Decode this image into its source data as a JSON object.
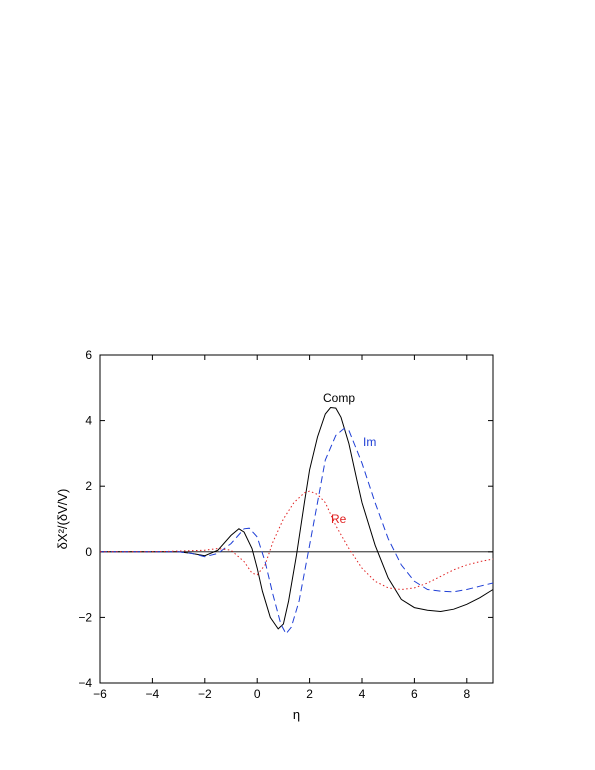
{
  "chart_data": {
    "type": "line",
    "xlabel": "η",
    "ylabel": "δX²/(δV/V)",
    "xlim": [
      -6,
      9
    ],
    "ylim": [
      -4,
      6
    ],
    "xticks": [
      -6,
      -4,
      -2,
      0,
      2,
      4,
      6,
      8
    ],
    "yticks": [
      -4,
      -2,
      0,
      2,
      4,
      6
    ],
    "xtick_labels": [
      "−6",
      "−4",
      "−2",
      "0",
      "2",
      "4",
      "6",
      "8"
    ],
    "ytick_labels": [
      "−4",
      "−2",
      "0",
      "2",
      "4",
      "6"
    ],
    "zero_line": true,
    "grid": false,
    "series": [
      {
        "name": "Comp",
        "color": "#000000",
        "dash": "solid",
        "x": [
          -6,
          -4,
          -3,
          -2.5,
          -2,
          -1.5,
          -1,
          -0.7,
          -0.5,
          -0.2,
          0,
          0.2,
          0.5,
          0.8,
          1,
          1.2,
          1.5,
          1.8,
          2,
          2.3,
          2.6,
          2.8,
          3,
          3.2,
          3.5,
          3.8,
          4,
          4.5,
          5,
          5.5,
          6,
          6.5,
          7,
          7.5,
          8,
          8.5,
          9
        ],
        "y": [
          0,
          0,
          0,
          -0.05,
          -0.12,
          0.05,
          0.5,
          0.7,
          0.6,
          0.1,
          -0.5,
          -1.2,
          -2.0,
          -2.35,
          -2.2,
          -1.5,
          -0.1,
          1.5,
          2.5,
          3.5,
          4.2,
          4.4,
          4.38,
          4.1,
          3.3,
          2.2,
          1.5,
          0.2,
          -0.8,
          -1.45,
          -1.7,
          -1.78,
          -1.82,
          -1.75,
          -1.6,
          -1.4,
          -1.15
        ]
      },
      {
        "name": "Im",
        "color": "#1f3fd6",
        "dash": "dashed",
        "x": [
          -6,
          -4,
          -3,
          -2.5,
          -2,
          -1.5,
          -1,
          -0.5,
          -0.3,
          0,
          0.3,
          0.6,
          0.9,
          1.1,
          1.3,
          1.6,
          2,
          2.3,
          2.6,
          3,
          3.3,
          3.5,
          3.8,
          4,
          4.5,
          5,
          5.5,
          6,
          6.5,
          7,
          7.5,
          8,
          8.5,
          9
        ],
        "y": [
          0,
          0,
          0,
          -0.05,
          -0.15,
          -0.05,
          0.25,
          0.7,
          0.72,
          0.45,
          -0.3,
          -1.3,
          -2.2,
          -2.5,
          -2.3,
          -1.5,
          0.2,
          1.5,
          2.8,
          3.55,
          3.75,
          3.7,
          3.1,
          2.7,
          1.5,
          0.4,
          -0.4,
          -0.9,
          -1.15,
          -1.2,
          -1.22,
          -1.15,
          -1.05,
          -0.95
        ]
      },
      {
        "name": "Re",
        "color": "#e02020",
        "dash": "dotted",
        "x": [
          -6,
          -4,
          -3,
          -2,
          -1.5,
          -1,
          -0.5,
          -0.2,
          0,
          0.3,
          0.6,
          1,
          1.4,
          1.8,
          2,
          2.3,
          2.6,
          3,
          3.5,
          4,
          4.5,
          5,
          5.5,
          6,
          6.5,
          7,
          7.5,
          8,
          8.5,
          9
        ],
        "y": [
          0,
          0,
          0.02,
          0.05,
          0.1,
          0.05,
          -0.3,
          -0.65,
          -0.7,
          -0.4,
          0.3,
          1.0,
          1.5,
          1.8,
          1.85,
          1.75,
          1.5,
          0.8,
          0.1,
          -0.5,
          -0.9,
          -1.1,
          -1.15,
          -1.1,
          -0.95,
          -0.75,
          -0.55,
          -0.4,
          -0.3,
          -0.22
        ]
      }
    ]
  }
}
